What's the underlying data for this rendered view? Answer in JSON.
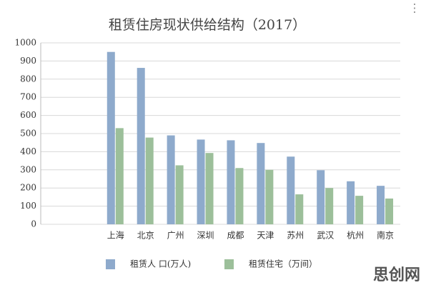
{
  "chart_data": {
    "type": "bar",
    "title": "租赁住房现状供给结构（2017）",
    "categories": [
      null,
      null,
      "上海",
      "北京",
      "广州",
      "深圳",
      "成都",
      "天津",
      "苏州",
      "武汉",
      "杭州",
      "南京"
    ],
    "series": [
      {
        "name": "租赁人 口(万人)",
        "color": "#8eaacc",
        "values": [
          null,
          null,
          950,
          862,
          490,
          467,
          463,
          448,
          373,
          298,
          237,
          212
        ]
      },
      {
        "name": "租赁住宅（万间）",
        "color": "#9cbf9a",
        "values": [
          null,
          null,
          530,
          478,
          325,
          393,
          310,
          300,
          165,
          200,
          157,
          142
        ]
      }
    ],
    "ylim": [
      0,
      1000
    ],
    "yticks": [
      0,
      100,
      200,
      300,
      400,
      500,
      600,
      700,
      800,
      900,
      1000
    ],
    "grid": true,
    "legend": "bottom"
  },
  "watermark": "思创网"
}
